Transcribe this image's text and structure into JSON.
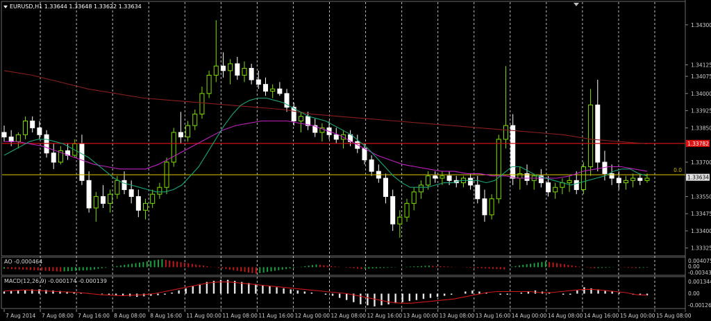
{
  "chart_data": [
    {
      "type": "candlestick",
      "symbol_title": "EURUSD,H1  1.33644 1.33648 1.33622 1.33634",
      "price_ticks": [
        "1.34300",
        "1.34125",
        "1.34075",
        "1.34000",
        "1.33925",
        "1.33850",
        "1.33700",
        "1.33550",
        "1.33475",
        "1.33400",
        "1.33325"
      ],
      "ylim": [
        1.333,
        1.3436
      ],
      "current_price": "1.33634",
      "current_price_value": 1.33634,
      "red_level": "1.33782",
      "red_level_value": 1.33782,
      "yellow_level_label": "0.0",
      "yellow_level_value": 1.33645,
      "grid": "vertical dashed",
      "colors": {
        "bull": "#7fe000",
        "bear": "#ffffff",
        "ma_fast": "#1aa67a",
        "ma_mid": "#c020c0",
        "ma_slow": "#8a1e1e",
        "red_level": "#d01010",
        "yellow_level": "#c8b400",
        "price_badge": "#e0e0e0",
        "red_badge": "#e01010"
      },
      "candles": [
        [
          1.3383,
          1.3386,
          1.3379,
          1.3381
        ],
        [
          1.3381,
          1.3384,
          1.3377,
          1.3379
        ],
        [
          1.3379,
          1.3383,
          1.3376,
          1.3382
        ],
        [
          1.3382,
          1.339,
          1.338,
          1.3388
        ],
        [
          1.3388,
          1.339,
          1.3383,
          1.3385
        ],
        [
          1.3385,
          1.3388,
          1.338,
          1.3382
        ],
        [
          1.3382,
          1.3384,
          1.3372,
          1.3374
        ],
        [
          1.3374,
          1.3378,
          1.3367,
          1.337
        ],
        [
          1.337,
          1.3377,
          1.3369,
          1.3375
        ],
        [
          1.3375,
          1.3378,
          1.3371,
          1.3373
        ],
        [
          1.3373,
          1.338,
          1.3372,
          1.3378
        ],
        [
          1.3378,
          1.3382,
          1.336,
          1.3362
        ],
        [
          1.3362,
          1.3366,
          1.3348,
          1.335
        ],
        [
          1.335,
          1.3357,
          1.3344,
          1.3355
        ],
        [
          1.3355,
          1.336,
          1.335,
          1.3352
        ],
        [
          1.3352,
          1.3358,
          1.3348,
          1.3356
        ],
        [
          1.3356,
          1.3364,
          1.3354,
          1.3362
        ],
        [
          1.3362,
          1.3366,
          1.3356,
          1.3358
        ],
        [
          1.3358,
          1.3362,
          1.3352,
          1.3355
        ],
        [
          1.3355,
          1.3358,
          1.3346,
          1.3349
        ],
        [
          1.3349,
          1.3354,
          1.3345,
          1.3352
        ],
        [
          1.3352,
          1.3358,
          1.335,
          1.3356
        ],
        [
          1.3356,
          1.3361,
          1.3354,
          1.3359
        ],
        [
          1.3359,
          1.3372,
          1.3356,
          1.337
        ],
        [
          1.337,
          1.3385,
          1.3368,
          1.3383
        ],
        [
          1.3383,
          1.3392,
          1.3378,
          1.3381
        ],
        [
          1.3381,
          1.3388,
          1.3379,
          1.3386
        ],
        [
          1.3386,
          1.3393,
          1.3384,
          1.3391
        ],
        [
          1.3391,
          1.3403,
          1.3389,
          1.34
        ],
        [
          1.34,
          1.341,
          1.3398,
          1.3408
        ],
        [
          1.3408,
          1.3432,
          1.3405,
          1.3412
        ],
        [
          1.3412,
          1.3418,
          1.3407,
          1.341
        ],
        [
          1.341,
          1.3415,
          1.3404,
          1.3413
        ],
        [
          1.3413,
          1.3416,
          1.3406,
          1.3408
        ],
        [
          1.3408,
          1.3414,
          1.3405,
          1.3411
        ],
        [
          1.3411,
          1.3413,
          1.3404,
          1.3406
        ],
        [
          1.3406,
          1.341,
          1.3402,
          1.3404
        ],
        [
          1.3404,
          1.3407,
          1.3399,
          1.3401
        ],
        [
          1.3401,
          1.3404,
          1.3398,
          1.3402
        ],
        [
          1.3402,
          1.3405,
          1.3399,
          1.34
        ],
        [
          1.34,
          1.3402,
          1.3392,
          1.3394
        ],
        [
          1.3394,
          1.3396,
          1.3386,
          1.3388
        ],
        [
          1.3388,
          1.3392,
          1.3383,
          1.339
        ],
        [
          1.339,
          1.3392,
          1.3384,
          1.3386
        ],
        [
          1.3386,
          1.3389,
          1.3381,
          1.3383
        ],
        [
          1.3383,
          1.3387,
          1.3379,
          1.3385
        ],
        [
          1.3385,
          1.3388,
          1.338,
          1.3382
        ],
        [
          1.3382,
          1.3385,
          1.3378,
          1.338
        ],
        [
          1.338,
          1.3384,
          1.3376,
          1.3382
        ],
        [
          1.3382,
          1.3384,
          1.3377,
          1.3379
        ],
        [
          1.3379,
          1.3382,
          1.3374,
          1.3376
        ],
        [
          1.3376,
          1.3378,
          1.3369,
          1.3371
        ],
        [
          1.3371,
          1.3373,
          1.3364,
          1.3366
        ],
        [
          1.3366,
          1.3369,
          1.3361,
          1.3363
        ],
        [
          1.3363,
          1.3365,
          1.3352,
          1.3355
        ],
        [
          1.3355,
          1.3358,
          1.334,
          1.3343
        ],
        [
          1.3343,
          1.3349,
          1.3337,
          1.3346
        ],
        [
          1.3346,
          1.3354,
          1.3344,
          1.3352
        ],
        [
          1.3352,
          1.3359,
          1.3349,
          1.3357
        ],
        [
          1.3357,
          1.3362,
          1.3354,
          1.336
        ],
        [
          1.336,
          1.3366,
          1.3358,
          1.3364
        ],
        [
          1.3364,
          1.3366,
          1.3361,
          1.3363
        ],
        [
          1.3363,
          1.3366,
          1.336,
          1.3364
        ],
        [
          1.3364,
          1.3366,
          1.336,
          1.3362
        ],
        [
          1.3362,
          1.3364,
          1.3359,
          1.3361
        ],
        [
          1.3361,
          1.3364,
          1.3359,
          1.3363
        ],
        [
          1.3363,
          1.3365,
          1.3358,
          1.336
        ],
        [
          1.336,
          1.3364,
          1.3352,
          1.3354
        ],
        [
          1.3354,
          1.3358,
          1.3344,
          1.3347
        ],
        [
          1.3347,
          1.3356,
          1.3345,
          1.3354
        ],
        [
          1.3354,
          1.3382,
          1.3352,
          1.338
        ],
        [
          1.338,
          1.3412,
          1.3376,
          1.3386
        ],
        [
          1.3386,
          1.3391,
          1.336,
          1.3363
        ],
        [
          1.3363,
          1.3368,
          1.3358,
          1.3365
        ],
        [
          1.3365,
          1.3369,
          1.336,
          1.3362
        ],
        [
          1.3362,
          1.3365,
          1.3358,
          1.3364
        ],
        [
          1.3364,
          1.3367,
          1.3359,
          1.3361
        ],
        [
          1.3361,
          1.3364,
          1.3355,
          1.3357
        ],
        [
          1.3357,
          1.3361,
          1.3354,
          1.3359
        ],
        [
          1.3359,
          1.3363,
          1.3356,
          1.3361
        ],
        [
          1.3361,
          1.3364,
          1.3357,
          1.3362
        ],
        [
          1.3362,
          1.3366,
          1.3356,
          1.3358
        ],
        [
          1.3358,
          1.337,
          1.3356,
          1.3368
        ],
        [
          1.3368,
          1.3402,
          1.3364,
          1.3395
        ],
        [
          1.3395,
          1.3406,
          1.3366,
          1.337
        ],
        [
          1.337,
          1.3375,
          1.3362,
          1.3365
        ],
        [
          1.3365,
          1.3369,
          1.336,
          1.3363
        ],
        [
          1.3363,
          1.3366,
          1.3358,
          1.3361
        ],
        [
          1.3361,
          1.3364,
          1.3358,
          1.3362
        ],
        [
          1.3362,
          1.3365,
          1.3359,
          1.3363
        ],
        [
          1.3363,
          1.3365,
          1.336,
          1.3362
        ],
        [
          1.3362,
          1.3365,
          1.3361,
          1.3363
        ]
      ],
      "ma_fast": [
        1.3373,
        1.3375,
        1.3377,
        1.3379,
        1.338,
        1.338,
        1.3379,
        1.3378,
        1.3376,
        1.3374,
        1.3372,
        1.3369,
        1.3366,
        1.3363,
        1.3361,
        1.336,
        1.3359,
        1.3358,
        1.3357,
        1.3357,
        1.3358,
        1.336,
        1.3364,
        1.3368,
        1.3374,
        1.338,
        1.3386,
        1.3391,
        1.3395,
        1.3397,
        1.3398,
        1.3398,
        1.3397,
        1.3396,
        1.3394,
        1.3392,
        1.339,
        1.3389,
        1.3388,
        1.3386,
        1.3384,
        1.3382,
        1.3379,
        1.3376,
        1.3372,
        1.3368,
        1.3364,
        1.3361,
        1.3359,
        1.3359,
        1.3359,
        1.336,
        1.3361,
        1.3361,
        1.3362,
        1.3362,
        1.3362,
        1.3361,
        1.3362,
        1.3365,
        1.3368,
        1.3368,
        1.3366,
        1.3364,
        1.3363,
        1.3362,
        1.3361,
        1.336,
        1.3361,
        1.3362,
        1.3363,
        1.3364,
        1.3366,
        1.3367,
        1.3367,
        1.3365,
        1.3364
      ],
      "ma_mid": [
        1.3379,
        1.3379,
        1.3378,
        1.3377,
        1.3375,
        1.3373,
        1.3371,
        1.3369,
        1.3368,
        1.3367,
        1.3367,
        1.3367,
        1.3369,
        1.3372,
        1.3375,
        1.3378,
        1.3381,
        1.3384,
        1.3386,
        1.3387,
        1.3388,
        1.3388,
        1.3388,
        1.3387,
        1.3386,
        1.3384,
        1.3382,
        1.3379,
        1.3376,
        1.3373,
        1.3371,
        1.3369,
        1.3368,
        1.3367,
        1.3366,
        1.3366,
        1.3365,
        1.3365,
        1.3364,
        1.3364,
        1.3363,
        1.3363,
        1.3363,
        1.3363,
        1.3364,
        1.3366,
        1.3367,
        1.3368,
        1.3368,
        1.3367,
        1.3366
      ],
      "ma_slow": [
        1.341,
        1.3408,
        1.3405,
        1.3402,
        1.34,
        1.3398,
        1.3397,
        1.3396,
        1.3395,
        1.3394,
        1.3393,
        1.3391,
        1.339,
        1.3389,
        1.3388,
        1.3387,
        1.3386,
        1.3385,
        1.3384,
        1.3383,
        1.3382,
        1.338,
        1.3379,
        1.3378
      ],
      "time_labels": [
        "7 Aug 2014",
        "7 Aug 08:00",
        "7 Aug 16:00",
        "8 Aug 08:00",
        "8 Aug 16:00",
        "11 Aug 00:00",
        "11 Aug 08:00",
        "11 Aug 16:00",
        "12 Aug 00:00",
        "12 Aug 08:00",
        "12 Aug 16:00",
        "13 Aug 00:00",
        "13 Aug 08:00",
        "13 Aug 16:00",
        "14 Aug 00:00",
        "14 Aug 08:00",
        "14 Aug 16:00",
        "15 Aug 00:00",
        "15 Aug 08:00"
      ]
    },
    {
      "type": "bar",
      "title": "AO -0.000464",
      "ticks": [
        "0.004075",
        "0.00",
        "-0.003435"
      ],
      "ylim": [
        -0.0035,
        0.0041
      ],
      "colors": {
        "up": "#1aa040",
        "down": "#c01818"
      },
      "values": [
        -0.0008,
        -0.0009,
        -0.001,
        -0.0011,
        -0.0012,
        -0.0013,
        -0.0014,
        -0.0015,
        -0.0016,
        -0.0017,
        -0.0018,
        -0.0019,
        -0.002,
        -0.0021,
        -0.0022,
        -0.0023,
        -0.0022,
        -0.0021,
        -0.002,
        -0.0019,
        -0.0018,
        -0.0017,
        -0.0016,
        -0.0015,
        -0.0012,
        -0.0009,
        -0.0006,
        -0.0003,
        0.0,
        0.0003,
        0.0006,
        0.0009,
        0.0012,
        0.0015,
        0.0018,
        0.0021,
        0.0024,
        0.0027,
        0.003,
        0.0033,
        0.0036,
        0.0039,
        0.0041,
        0.0038,
        0.0035,
        0.0032,
        0.0029,
        0.0026,
        0.0023,
        0.002,
        0.0017,
        0.0014,
        0.0011,
        0.0008,
        0.0005,
        0.0002,
        -0.0001,
        -0.0004,
        -0.0007,
        -0.001,
        -0.0013,
        -0.0016,
        -0.0019,
        -0.0022,
        -0.0025,
        -0.0028,
        -0.0031,
        -0.0034,
        -0.0031,
        -0.0028,
        -0.0025,
        -0.0022,
        -0.0019,
        -0.0016,
        -0.0013,
        -0.001,
        -0.0007,
        -0.0004,
        -0.0001,
        0.0002,
        0.0005,
        0.0008,
        0.0011,
        0.0014,
        0.0012,
        0.001,
        0.0008,
        0.0006,
        0.0004,
        0.0002,
        0.0,
        -0.0002,
        -0.0004,
        -0.0006,
        -0.0008,
        -0.001,
        -0.0009,
        -0.0008,
        -0.0007,
        -0.0006,
        -0.0005,
        -0.0004,
        -0.0003,
        -0.0002,
        -0.0001,
        0.0,
        0.0001,
        0.0002,
        0.0003,
        0.0004,
        0.0005,
        0.0006,
        0.0007,
        0.0008,
        0.0007,
        0.0006,
        0.0005,
        0.0004,
        0.0003,
        0.0002,
        0.0001,
        0.0,
        -0.0001,
        -0.0002,
        -0.0003,
        -0.0004,
        -0.0005,
        -0.0006,
        -0.0007,
        -0.0008,
        -0.0009,
        -0.001,
        -0.0011,
        -0.0012,
        0.0,
        0.0003,
        0.0006,
        0.0009,
        0.0012,
        0.0015,
        0.0018,
        0.0021,
        0.0024,
        0.0027,
        0.003,
        0.0027,
        0.0024,
        0.0021,
        0.0018,
        0.0015,
        0.0012,
        0.0009,
        0.0006,
        0.0003,
        0.0,
        -0.0002,
        -0.0004,
        -0.0006,
        -0.0005,
        -0.0004,
        -0.0003,
        -0.0002,
        -0.0001,
        0.0,
        -0.0001,
        -0.0002,
        -0.0003,
        -0.0004,
        -0.0005,
        -0.0004,
        -0.0003,
        -0.0002
      ]
    },
    {
      "type": "bar",
      "title": "MACD(12,26,9) -0.000174 -0.000139",
      "ticks": [
        "0.001344",
        "0.00",
        "-0.001268"
      ],
      "ylim": [
        -0.00127,
        0.00134
      ],
      "colors": {
        "histogram": "#e6e6e6",
        "signal": "#d01818"
      },
      "values": [
        0.0002,
        0.00025,
        0.0003,
        0.00035,
        0.0004,
        0.0004,
        0.00035,
        0.0003,
        0.00025,
        0.0002,
        0.00015,
        0.0001,
        5e-05,
        0.0,
        -5e-05,
        -0.0001,
        -0.00015,
        -0.0002,
        -0.00025,
        -0.0003,
        -0.00025,
        -0.0002,
        -0.00015,
        -0.0001,
        0.0001,
        0.0003,
        0.0005,
        0.0007,
        0.0009,
        0.0011,
        0.0012,
        0.0013,
        0.0013,
        0.0012,
        0.0011,
        0.001,
        0.0009,
        0.0008,
        0.0007,
        0.0006,
        0.0005,
        0.0004,
        0.0003,
        0.0002,
        0.0001,
        0.0,
        -0.0001,
        -0.0002,
        -0.0004,
        -0.0006,
        -0.0008,
        -0.001,
        -0.0011,
        -0.0012,
        -0.0011,
        -0.001,
        -0.0009,
        -0.0008,
        -0.0007,
        -0.0006,
        -0.0005,
        -0.0004,
        -0.0003,
        -0.0002,
        -0.0001,
        0.0,
        0.0002,
        0.0003,
        0.0002,
        0.0001,
        0.0,
        -0.0001,
        -0.0001,
        0.0,
        0.0001,
        0.0002,
        0.0003,
        0.0002,
        0.0001,
        0.0,
        -0.0001,
        -0.0001,
        0.0003,
        0.0006,
        0.0005,
        0.0004,
        0.0003,
        0.0002,
        0.0001,
        0.0,
        -0.0001,
        -0.00015,
        -0.00017
      ],
      "signal": [
        0.00025,
        0.0003,
        0.00035,
        0.0003,
        0.00025,
        0.0002,
        0.00015,
        0.0001,
        0.0,
        -0.0001,
        -0.00015,
        -0.0002,
        -0.00015,
        -0.0001,
        0.0,
        0.0002,
        0.0004,
        0.0006,
        0.0008,
        0.001,
        0.0011,
        0.0011,
        0.001,
        0.0009,
        0.0008,
        0.0007,
        0.0006,
        0.0005,
        0.0004,
        0.0003,
        0.0002,
        0.0001,
        0.0,
        -0.0002,
        -0.0004,
        -0.0006,
        -0.0008,
        -0.0009,
        -0.0009,
        -0.0008,
        -0.0007,
        -0.0006,
        -0.0005,
        -0.0003,
        -0.0001,
        0.0001,
        0.0002,
        0.0002,
        0.0002,
        0.0002,
        0.0001,
        0.0001,
        0.0002,
        0.0003,
        0.0004,
        0.0004,
        0.0003,
        0.0002,
        0.0001,
        -0.0001,
        -0.00014
      ]
    }
  ]
}
